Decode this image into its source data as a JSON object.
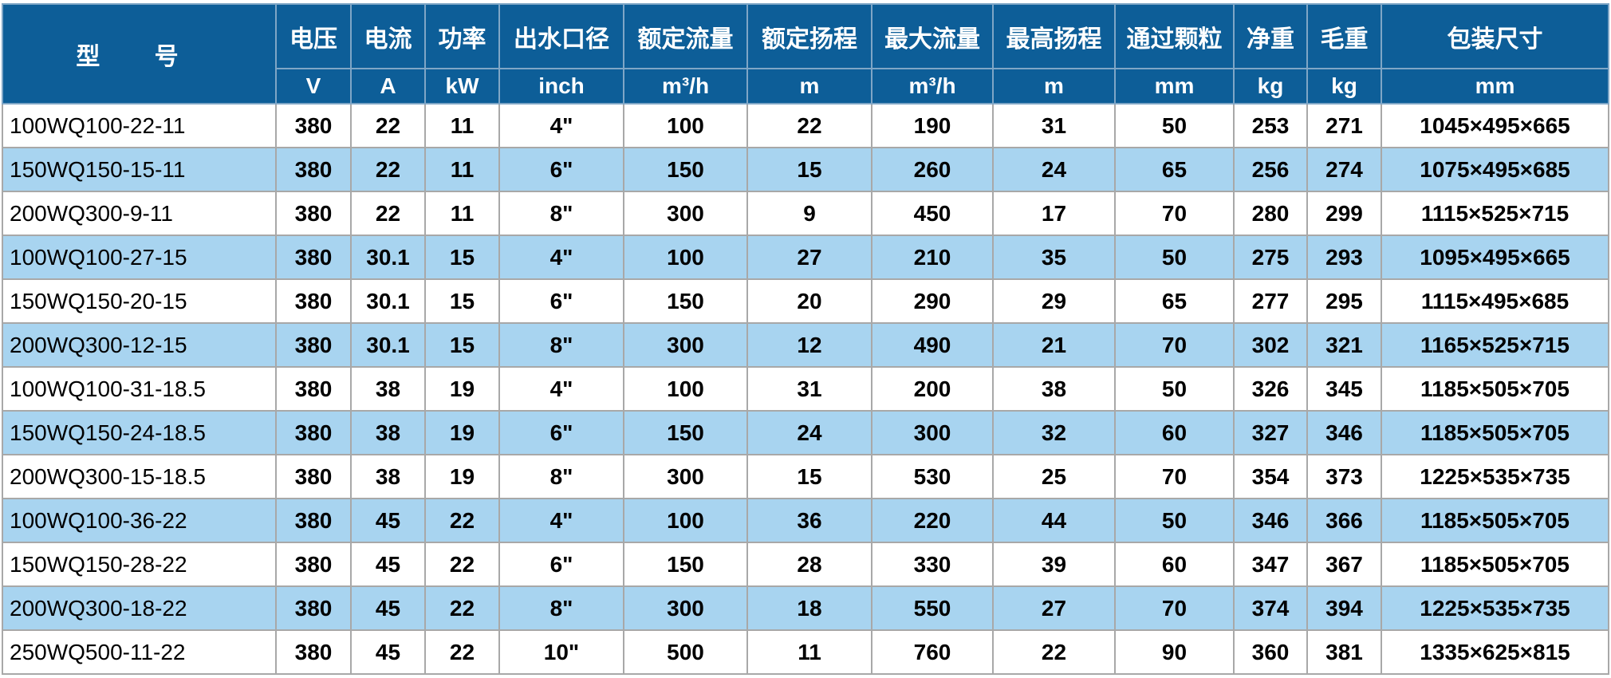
{
  "header": {
    "model": "型 号",
    "columns": [
      "电压",
      "电流",
      "功率",
      "出水口径",
      "额定流量",
      "额定扬程",
      "最大流量",
      "最高扬程",
      "通过颗粒",
      "净重",
      "毛重",
      "包装尺寸"
    ],
    "units": [
      "V",
      "A",
      "kW",
      "inch",
      "m³/h",
      "m",
      "m³/h",
      "m",
      "mm",
      "kg",
      "kg",
      "mm"
    ]
  },
  "colors": {
    "header_bg": "#0d5e98",
    "alt_row_bg": "#a8d4f0",
    "border": "#a8a8a8"
  },
  "rows": [
    [
      "100WQ100-22-11",
      "380",
      "22",
      "11",
      "4\"",
      "100",
      "22",
      "190",
      "31",
      "50",
      "253",
      "271",
      "1045×495×665"
    ],
    [
      "150WQ150-15-11",
      "380",
      "22",
      "11",
      "6\"",
      "150",
      "15",
      "260",
      "24",
      "65",
      "256",
      "274",
      "1075×495×685"
    ],
    [
      "200WQ300-9-11",
      "380",
      "22",
      "11",
      "8\"",
      "300",
      "9",
      "450",
      "17",
      "70",
      "280",
      "299",
      "1115×525×715"
    ],
    [
      "100WQ100-27-15",
      "380",
      "30.1",
      "15",
      "4\"",
      "100",
      "27",
      "210",
      "35",
      "50",
      "275",
      "293",
      "1095×495×665"
    ],
    [
      "150WQ150-20-15",
      "380",
      "30.1",
      "15",
      "6\"",
      "150",
      "20",
      "290",
      "29",
      "65",
      "277",
      "295",
      "1115×495×685"
    ],
    [
      "200WQ300-12-15",
      "380",
      "30.1",
      "15",
      "8\"",
      "300",
      "12",
      "490",
      "21",
      "70",
      "302",
      "321",
      "1165×525×715"
    ],
    [
      "100WQ100-31-18.5",
      "380",
      "38",
      "19",
      "4\"",
      "100",
      "31",
      "200",
      "38",
      "50",
      "326",
      "345",
      "1185×505×705"
    ],
    [
      "150WQ150-24-18.5",
      "380",
      "38",
      "19",
      "6\"",
      "150",
      "24",
      "300",
      "32",
      "60",
      "327",
      "346",
      "1185×505×705"
    ],
    [
      "200WQ300-15-18.5",
      "380",
      "38",
      "19",
      "8\"",
      "300",
      "15",
      "530",
      "25",
      "70",
      "354",
      "373",
      "1225×535×735"
    ],
    [
      "100WQ100-36-22",
      "380",
      "45",
      "22",
      "4\"",
      "100",
      "36",
      "220",
      "44",
      "50",
      "346",
      "366",
      "1185×505×705"
    ],
    [
      "150WQ150-28-22",
      "380",
      "45",
      "22",
      "6\"",
      "150",
      "28",
      "330",
      "39",
      "60",
      "347",
      "367",
      "1185×505×705"
    ],
    [
      "200WQ300-18-22",
      "380",
      "45",
      "22",
      "8\"",
      "300",
      "18",
      "550",
      "27",
      "70",
      "374",
      "394",
      "1225×535×735"
    ],
    [
      "250WQ500-11-22",
      "380",
      "45",
      "22",
      "10\"",
      "500",
      "11",
      "760",
      "22",
      "90",
      "360",
      "381",
      "1335×625×815"
    ]
  ]
}
